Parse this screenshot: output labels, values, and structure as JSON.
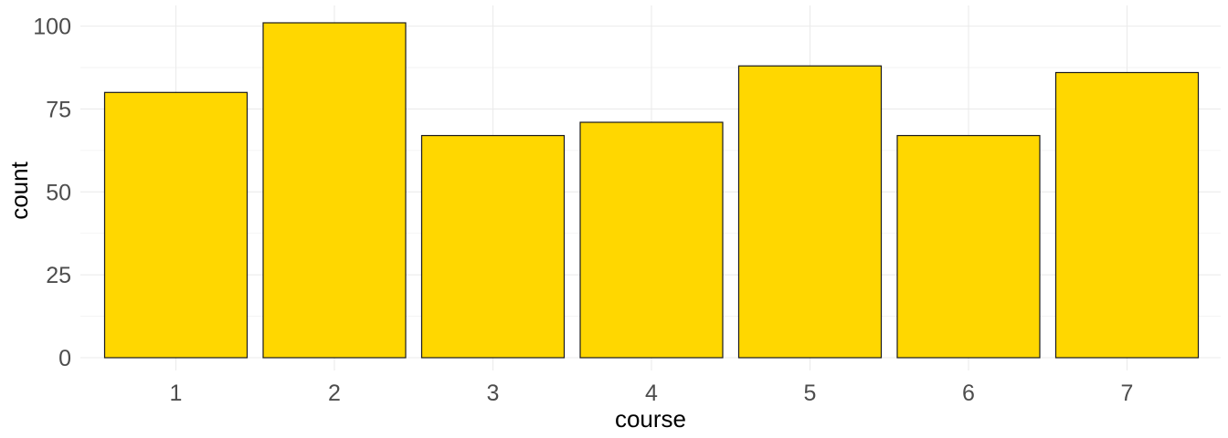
{
  "chart_data": {
    "type": "bar",
    "title": "",
    "xlabel": "course",
    "ylabel": "count",
    "categories": [
      "1",
      "2",
      "3",
      "4",
      "5",
      "6",
      "7"
    ],
    "values": [
      80,
      101,
      67,
      71,
      88,
      67,
      86
    ],
    "ylim": [
      0,
      101
    ],
    "yticks": [
      0,
      25,
      50,
      75,
      100
    ],
    "grid": true,
    "legend": "none",
    "colors": {
      "bar_fill": "#FFD700",
      "bar_outline": "#1a1a1a"
    }
  }
}
